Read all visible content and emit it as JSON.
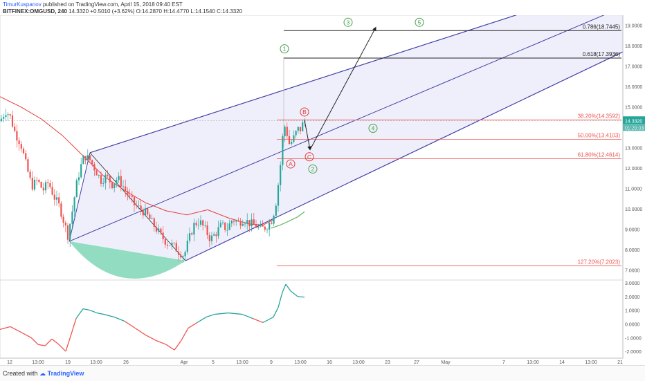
{
  "header": {
    "author": "TimurKuspanov",
    "published_text": "published on TradingView.com, April 15, 2018 09:40 EST",
    "symbol": "BITFINEX:OMGUSD, 240",
    "last": "14.3320",
    "change": "+0.5010 (+3.62%)",
    "ohlc": {
      "o": "O:14.2870",
      "h": "H:14.4770",
      "l": "L:14.1540",
      "c": "C:14.3320"
    }
  },
  "footer": {
    "created_with": "Created with",
    "brand": "TradingView"
  },
  "colors": {
    "up": "#26a69a",
    "down": "#ef5350",
    "channel": "#3f3fa8",
    "channel_fill": "#e9e9fa",
    "fib_red": "#ef5350",
    "fib_black": "#222222",
    "ma_red": "#e53935",
    "ma_green": "#66bb6a",
    "wave_green": "#43a047",
    "wave_red": "#e53935",
    "arc_fill": "#7fd6b6"
  },
  "chart_data": {
    "type": "candlestick",
    "price_axis": {
      "min": 6.5,
      "max": 19.5,
      "ticks": [
        "19.0000",
        "18.0000",
        "17.0000",
        "16.0000",
        "15.0000",
        "14.0000",
        "13.0000",
        "12.0000",
        "11.0000",
        "10.0000",
        "9.0000",
        "8.0000",
        "7.0000"
      ]
    },
    "last_price_label": "14.3320",
    "countdown_label": "01:20:03",
    "time_axis": {
      "labels": [
        "12",
        "13:00",
        "19",
        "13:00",
        "26",
        "Apr",
        "5",
        "13:00",
        "9",
        "13:00",
        "16",
        "13:00",
        "23",
        "27",
        "May",
        "7",
        "13:00",
        "14",
        "13:00",
        "21"
      ],
      "x_index": [
        0,
        41,
        84,
        125,
        168,
        252,
        294,
        336,
        378,
        420,
        462,
        504,
        546,
        588,
        630,
        714,
        756,
        798,
        840,
        882
      ]
    },
    "fib_levels": [
      {
        "label": "0.786(18.7445)",
        "value": 18.7445
      },
      {
        "label": "0.618(17.3936)",
        "value": 17.3936
      },
      {
        "label": "38.20%(14.3592)",
        "value": 14.3592
      },
      {
        "label": "50.00%(13.4103)",
        "value": 13.4103
      },
      {
        "label": "61.80%(12.4614)",
        "value": 12.4614
      },
      {
        "label": "127.20%(7.2023)",
        "value": 7.2023
      }
    ],
    "wave_labels": [
      {
        "text": "1",
        "color": "green",
        "x": 411,
        "y": 17.85
      },
      {
        "text": "2",
        "color": "green",
        "x": 452,
        "y": 11.95
      },
      {
        "text": "3",
        "color": "green",
        "x": 503,
        "y": 19.15
      },
      {
        "text": "4",
        "color": "green",
        "x": 539,
        "y": 13.95
      },
      {
        "text": "5",
        "color": "green",
        "x": 606,
        "y": 19.15
      },
      {
        "text": "A",
        "color": "red",
        "x": 420,
        "y": 12.2
      },
      {
        "text": "B",
        "color": "red",
        "x": 440,
        "y": 14.75
      },
      {
        "text": "C",
        "color": "red",
        "x": 447,
        "y": 12.55
      }
    ],
    "oscillator": {
      "min": -2.5,
      "max": 3.2,
      "ticks": [
        "3.0000",
        "2.0000",
        "1.0000",
        "0.0000",
        "-1.0000",
        "-2.0000"
      ]
    }
  }
}
